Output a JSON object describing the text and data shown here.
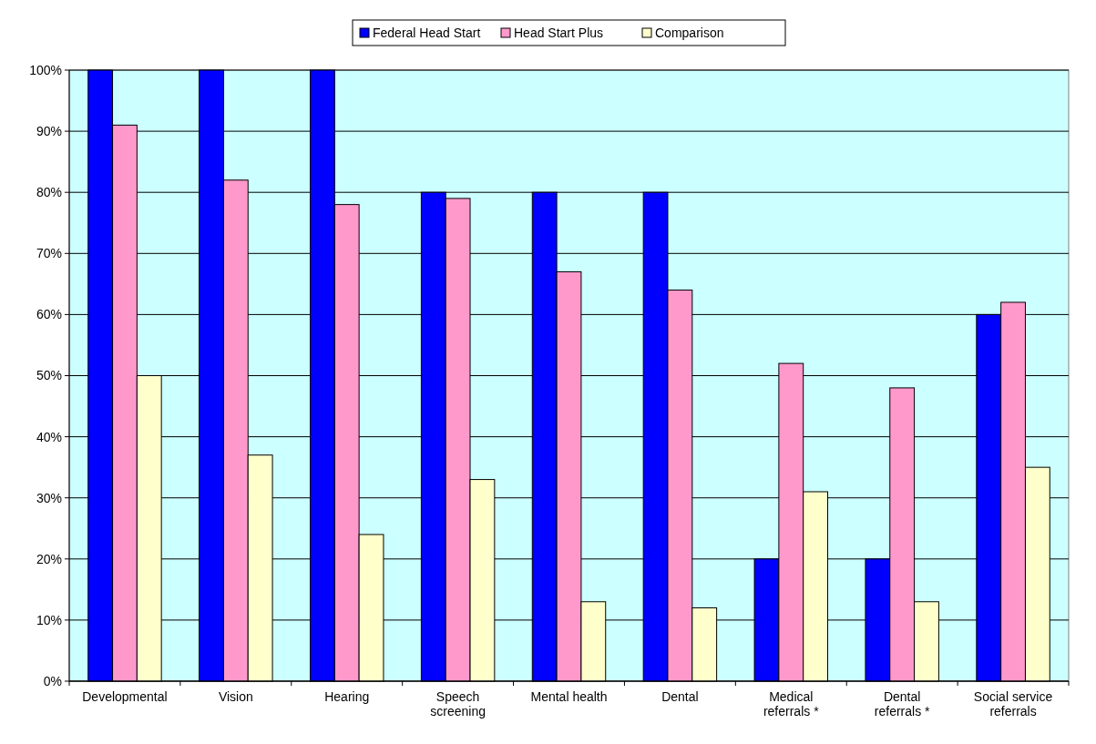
{
  "chart_data": {
    "type": "bar",
    "categories": [
      "Developmental",
      "Vision",
      "Hearing",
      "Speech screening",
      "Mental health",
      "Dental",
      "Medical referrals *",
      "Dental referrals *",
      "Social service referrals"
    ],
    "series": [
      {
        "name": "Federal Head Start",
        "color": "#0000ff",
        "values": [
          100,
          100,
          100,
          80,
          80,
          80,
          20,
          20,
          60
        ]
      },
      {
        "name": "Head Start Plus",
        "color": "#ff99cc",
        "values": [
          91,
          82,
          78,
          79,
          67,
          64,
          52,
          48,
          62
        ]
      },
      {
        "name": "Comparison",
        "color": "#ffffcc",
        "values": [
          50,
          37,
          24,
          33,
          13,
          12,
          31,
          13,
          35
        ]
      }
    ],
    "ylim": [
      0,
      100
    ],
    "yticks": [
      {
        "value": 0,
        "label": "0%"
      },
      {
        "value": 10,
        "label": "10%"
      },
      {
        "value": 20,
        "label": "20%"
      },
      {
        "value": 30,
        "label": "30%"
      },
      {
        "value": 40,
        "label": "40%"
      },
      {
        "value": 50,
        "label": "50%"
      },
      {
        "value": 60,
        "label": "60%"
      },
      {
        "value": 70,
        "label": "70%"
      },
      {
        "value": 80,
        "label": "80%"
      },
      {
        "value": 90,
        "label": "90%"
      },
      {
        "value": 100,
        "label": "100%"
      }
    ],
    "grid": "y",
    "legend": "top"
  }
}
